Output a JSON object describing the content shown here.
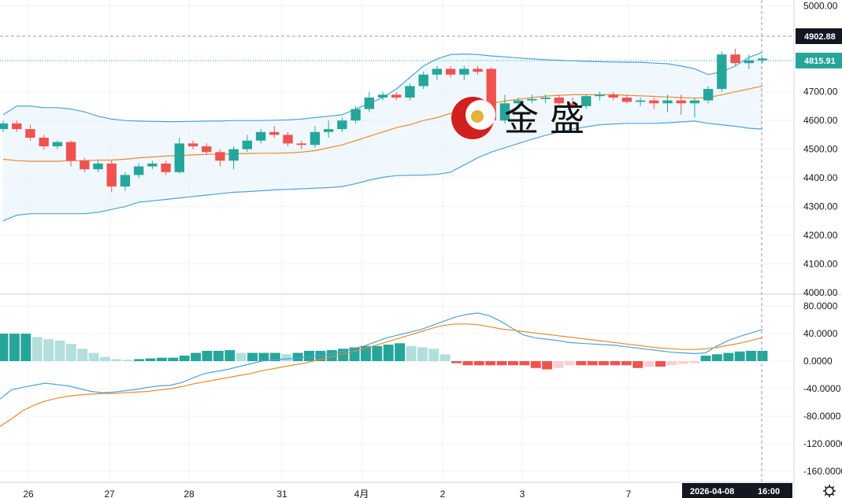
{
  "logo": {
    "text": "金 盛"
  },
  "price_tags": {
    "current": "4815.91",
    "crosshair": "4902.88"
  },
  "crosshair": {
    "date_label": "2026-04-08",
    "time_label": "16:00"
  },
  "icons": {
    "settings": "gear-icon"
  },
  "colors": {
    "up": "#26a69a",
    "down": "#ef5350",
    "ma": "#f0882a",
    "band": "#4aa3df",
    "macd_up_strong": "#26a69a",
    "macd_up_weak": "#b2dfdb",
    "macd_down_strong": "#ef5350",
    "macd_down_weak": "#ffcdd2"
  },
  "chart_data": [
    {
      "type": "candlestick",
      "overlay": [
        "bollinger_bands",
        "moving_average"
      ],
      "y_axis": {
        "ticks": [
          "5000.00",
          "4902.88",
          "4815.91",
          "4700.00",
          "4600.00",
          "4500.00",
          "4400.00",
          "4300.00",
          "4200.00",
          "4100.00",
          "4000.00"
        ],
        "range": [
          4000,
          5020
        ]
      },
      "x_axis": {
        "ticks": [
          "26",
          "27",
          "28",
          "31",
          "4月",
          "2",
          "3",
          "7"
        ]
      },
      "candles": [
        [
          4570,
          4600,
          4560,
          4590
        ],
        [
          4590,
          4600,
          4560,
          4570
        ],
        [
          4570,
          4585,
          4530,
          4540
        ],
        [
          4540,
          4550,
          4500,
          4510
        ],
        [
          4510,
          4530,
          4500,
          4525
        ],
        [
          4525,
          4530,
          4440,
          4460
        ],
        [
          4460,
          4470,
          4420,
          4430
        ],
        [
          4430,
          4460,
          4420,
          4450
        ],
        [
          4450,
          4460,
          4350,
          4370
        ],
        [
          4370,
          4420,
          4355,
          4410
        ],
        [
          4410,
          4450,
          4400,
          4440
        ],
        [
          4440,
          4460,
          4430,
          4450
        ],
        [
          4450,
          4460,
          4410,
          4420
        ],
        [
          4420,
          4540,
          4415,
          4520
        ],
        [
          4520,
          4530,
          4500,
          4510
        ],
        [
          4510,
          4520,
          4480,
          4490
        ],
        [
          4490,
          4500,
          4440,
          4460
        ],
        [
          4460,
          4510,
          4430,
          4500
        ],
        [
          4500,
          4550,
          4490,
          4530
        ],
        [
          4530,
          4570,
          4520,
          4560
        ],
        [
          4560,
          4580,
          4540,
          4550
        ],
        [
          4550,
          4560,
          4510,
          4520
        ],
        [
          4520,
          4530,
          4500,
          4515
        ],
        [
          4515,
          4580,
          4505,
          4560
        ],
        [
          4560,
          4600,
          4540,
          4570
        ],
        [
          4570,
          4610,
          4560,
          4600
        ],
        [
          4600,
          4650,
          4590,
          4640
        ],
        [
          4640,
          4700,
          4630,
          4680
        ],
        [
          4680,
          4700,
          4670,
          4690
        ],
        [
          4690,
          4700,
          4670,
          4680
        ],
        [
          4680,
          4730,
          4670,
          4720
        ],
        [
          4720,
          4770,
          4710,
          4760
        ],
        [
          4760,
          4790,
          4740,
          4780
        ],
        [
          4780,
          4790,
          4750,
          4760
        ],
        [
          4760,
          4790,
          4740,
          4780
        ],
        [
          4780,
          4790,
          4760,
          4770
        ],
        [
          4780,
          4785,
          4590,
          4600
        ],
        [
          4600,
          4690,
          4590,
          4660
        ],
        [
          4660,
          4680,
          4640,
          4670
        ],
        [
          4670,
          4690,
          4660,
          4675
        ],
        [
          4675,
          4690,
          4660,
          4680
        ],
        [
          4680,
          4690,
          4650,
          4660
        ],
        [
          4660,
          4680,
          4640,
          4650
        ],
        [
          4650,
          4690,
          4640,
          4685
        ],
        [
          4685,
          4700,
          4670,
          4690
        ],
        [
          4690,
          4700,
          4670,
          4680
        ],
        [
          4680,
          4690,
          4660,
          4665
        ],
        [
          4665,
          4680,
          4650,
          4670
        ],
        [
          4670,
          4680,
          4640,
          4660
        ],
        [
          4660,
          4690,
          4630,
          4670
        ],
        [
          4670,
          4690,
          4620,
          4660
        ],
        [
          4660,
          4680,
          4610,
          4670
        ],
        [
          4670,
          4720,
          4660,
          4710
        ],
        [
          4710,
          4840,
          4700,
          4830
        ],
        [
          4830,
          4850,
          4790,
          4800
        ],
        [
          4800,
          4830,
          4780,
          4810
        ],
        [
          4810,
          4820,
          4800,
          4816
        ]
      ],
      "ma": [
        4465,
        4460,
        4458,
        4458,
        4458,
        4460,
        4460,
        4462,
        4462,
        4465,
        4470,
        4473,
        4476,
        4478,
        4480,
        4482,
        4483,
        4484,
        4485,
        4486,
        4486,
        4487,
        4490,
        4495,
        4505,
        4515,
        4530,
        4545,
        4560,
        4575,
        4585,
        4600,
        4610,
        4625,
        4640,
        4650,
        4660,
        4668,
        4674,
        4680,
        4685,
        4688,
        4690,
        4690,
        4690,
        4690,
        4688,
        4686,
        4684,
        4682,
        4680,
        4678,
        4680,
        4690,
        4700,
        4710,
        4720
      ],
      "bb_upper": [
        4620,
        4650,
        4650,
        4645,
        4645,
        4640,
        4630,
        4615,
        4605,
        4600,
        4598,
        4597,
        4596,
        4596,
        4597,
        4598,
        4598,
        4600,
        4600,
        4600,
        4601,
        4602,
        4605,
        4610,
        4615,
        4620,
        4640,
        4660,
        4680,
        4710,
        4750,
        4790,
        4815,
        4830,
        4832,
        4830,
        4825,
        4822,
        4818,
        4815,
        4812,
        4810,
        4808,
        4806,
        4805,
        4804,
        4803,
        4803,
        4800,
        4798,
        4790,
        4780,
        4760,
        4770,
        4790,
        4820,
        4838
      ],
      "bb_lower": [
        4250,
        4270,
        4275,
        4275,
        4275,
        4275,
        4275,
        4280,
        4290,
        4300,
        4315,
        4320,
        4325,
        4330,
        4335,
        4340,
        4345,
        4350,
        4352,
        4355,
        4358,
        4360,
        4362,
        4364,
        4366,
        4370,
        4380,
        4392,
        4402,
        4408,
        4409,
        4410,
        4412,
        4420,
        4445,
        4470,
        4490,
        4505,
        4520,
        4535,
        4548,
        4560,
        4570,
        4578,
        4585,
        4588,
        4590,
        4590,
        4590,
        4592,
        4595,
        4598,
        4590,
        4585,
        4580,
        4573,
        4570
      ]
    },
    {
      "type": "bar",
      "indicator": "MACD",
      "y_axis": {
        "ticks": [
          "80.0000",
          "40.0000",
          "0.0000",
          "-40.0000",
          "-80.0000",
          "-120.0000",
          "-160.0000"
        ],
        "range": [
          -175,
          95
        ]
      },
      "histogram": [
        40,
        40,
        40,
        35,
        32,
        30,
        25,
        18,
        12,
        6,
        3,
        2,
        3,
        4,
        5,
        5,
        8,
        12,
        15,
        15,
        16,
        12,
        12,
        12,
        12,
        10,
        12,
        15,
        15,
        16,
        18,
        20,
        22,
        22,
        24,
        26,
        22,
        20,
        18,
        10,
        -3,
        -6,
        -6,
        -6,
        -6,
        -6,
        -6,
        -10,
        -12,
        -10,
        -6,
        -6,
        -6,
        -6,
        -6,
        -6,
        -10,
        -8,
        -8,
        -6,
        -4,
        -3,
        8,
        10,
        12,
        14,
        15,
        15
      ],
      "macd_line": [
        -55,
        -42,
        -38,
        -35,
        -32,
        -34,
        -36,
        -40,
        -44,
        -46,
        -45,
        -43,
        -41,
        -38,
        -36,
        -35,
        -31,
        -24,
        -18,
        -15,
        -12,
        -8,
        -4,
        0,
        2,
        3,
        4,
        6,
        8,
        10,
        14,
        18,
        22,
        28,
        34,
        38,
        42,
        46,
        52,
        58,
        64,
        68,
        70,
        66,
        58,
        48,
        38,
        34,
        32,
        30,
        27,
        26,
        25,
        24,
        23,
        21,
        19,
        17,
        15,
        13,
        12,
        11,
        12,
        22,
        30,
        36,
        41,
        46
      ],
      "signal_line": [
        -95,
        -84,
        -72,
        -64,
        -58,
        -54,
        -51,
        -49,
        -48,
        -47,
        -47,
        -46,
        -45,
        -44,
        -42,
        -40,
        -37,
        -33,
        -30,
        -27,
        -24,
        -21,
        -18,
        -14,
        -11,
        -8,
        -5,
        -2,
        2,
        6,
        10,
        14,
        18,
        23,
        28,
        33,
        38,
        43,
        48,
        52,
        54,
        54,
        53,
        50,
        47,
        45,
        43,
        41,
        39,
        37,
        35,
        33,
        31,
        29,
        27,
        25,
        23,
        21,
        19,
        18,
        17,
        17,
        18,
        20,
        23,
        26,
        30,
        34
      ]
    }
  ]
}
